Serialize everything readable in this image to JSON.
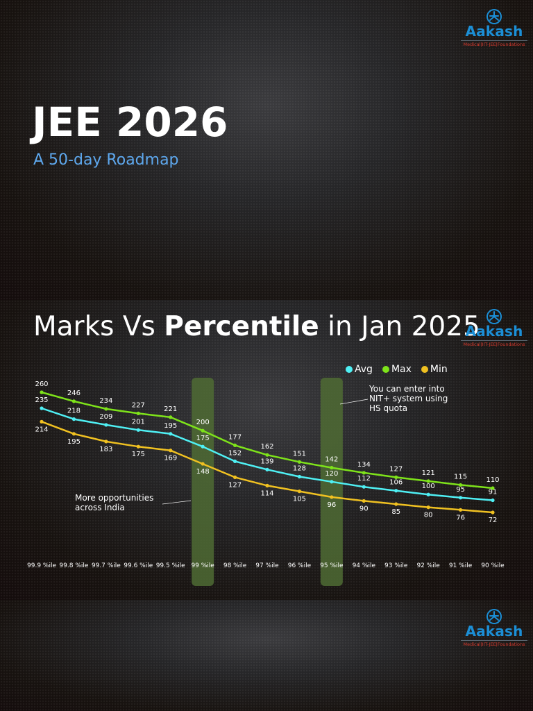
{
  "brand": {
    "name": "Aakash",
    "tagline": "Medical|IIT-JEE|Foundations"
  },
  "slide1": {
    "title": "JEE 2026",
    "subtitle": "A 50-day Roadmap"
  },
  "slide2": {
    "heading_prefix": "Marks Vs ",
    "heading_bold": "Percentile",
    "heading_suffix": " in Jan 2025",
    "annotation_left": [
      "More opportunities",
      "across India"
    ],
    "annotation_right": [
      "You can enter into",
      "NIT+ system using",
      "HS quota"
    ]
  },
  "colors": {
    "background": "#150c0c",
    "avg": "#4ff0f4",
    "max": "#7ee31a",
    "min": "#f0c121",
    "highlight": "#4f6b34",
    "brand_blue": "#1c8fd6",
    "brand_red": "#d83a2e",
    "subtitle": "#5ea8ee"
  },
  "chart_data": {
    "type": "line",
    "title": "Marks Vs Percentile in Jan 2025",
    "categories": [
      "99.9 %ile",
      "99.8 %ile",
      "99.7 %ile",
      "99.6 %ile",
      "99.5 %ile",
      "99 %ile",
      "98 %ile",
      "97 %ile",
      "96 %ile",
      "95 %ile",
      "94 %ile",
      "93 %ile",
      "92 %ile",
      "91 %ile",
      "90 %ile"
    ],
    "series": [
      {
        "name": "Avg",
        "values": [
          235,
          218,
          209,
          201,
          195,
          175,
          152,
          139,
          128,
          120,
          112,
          106,
          100,
          95,
          91
        ]
      },
      {
        "name": "Max",
        "values": [
          260,
          246,
          234,
          227,
          221,
          200,
          177,
          162,
          151,
          142,
          134,
          127,
          121,
          115,
          110
        ]
      },
      {
        "name": "Min",
        "values": [
          214,
          195,
          183,
          175,
          169,
          148,
          127,
          114,
          105,
          96,
          90,
          85,
          80,
          76,
          72
        ]
      }
    ],
    "highlighted_categories": [
      "99 %ile",
      "95 %ile"
    ],
    "legend_position": "top-right",
    "data_labels": true,
    "grid": false
  }
}
